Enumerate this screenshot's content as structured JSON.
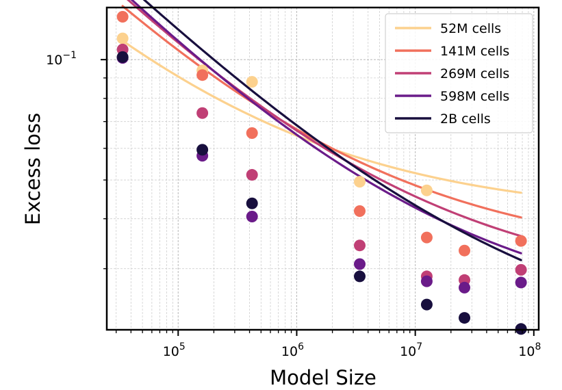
{
  "chart_data": {
    "type": "scatter",
    "title": "",
    "xlabel": "Model Size",
    "ylabel": "Excess loss",
    "xscale": "log",
    "yscale": "log",
    "xlim": [
      25000,
      110000000
    ],
    "ylim": [
      0.0211,
      0.135
    ],
    "grid": true,
    "legend_position": "top-right",
    "x_major_ticks": [
      {
        "value": 100000,
        "base": "10",
        "exp": "5"
      },
      {
        "value": 1000000,
        "base": "10",
        "exp": "6"
      },
      {
        "value": 10000000,
        "base": "10",
        "exp": "7"
      },
      {
        "value": 100000000,
        "base": "10",
        "exp": "8"
      }
    ],
    "y_major_ticks": [
      {
        "value": 0.1,
        "base": "10",
        "exp": "−1"
      }
    ],
    "x": [
      34000,
      160000,
      420000,
      3400000,
      12500000,
      26000000,
      78000000
    ],
    "series": [
      {
        "name": "52M cells",
        "color": "#fcd18e",
        "points": [
          0.113,
          0.094,
          0.088,
          0.0495,
          0.0471,
          null,
          null
        ],
        "fit": {
          "Linf": 0.0405,
          "A": 2.0,
          "alpha": 0.32
        }
      },
      {
        "name": "141M cells",
        "color": "#f1705c",
        "points": [
          0.128,
          0.0915,
          0.0655,
          0.0418,
          0.0359,
          0.0333,
          0.0352
        ],
        "fit": {
          "Linf": 0.0315,
          "A": 2.95,
          "alpha": 0.32
        }
      },
      {
        "name": "269M cells",
        "color": "#c03f75",
        "points": [
          0.106,
          0.0735,
          0.0515,
          0.0343,
          0.0287,
          0.0281,
          0.0298
        ],
        "fit": {
          "Linf": 0.0262,
          "A": 3.35,
          "alpha": 0.32
        }
      },
      {
        "name": "598M cells",
        "color": "#6a1b89",
        "points": [
          0.101,
          0.0575,
          0.0405,
          0.0308,
          0.0279,
          0.0269,
          0.0277
        ],
        "fit": {
          "Linf": 0.0222,
          "A": 3.55,
          "alpha": 0.32
        }
      },
      {
        "name": "2B cells",
        "color": "#180f3e",
        "points": [
          0.1015,
          0.0595,
          0.0437,
          0.0287,
          0.0244,
          0.0226,
          0.0212
        ],
        "fit": {
          "Linf": 0.0178,
          "A": 3.2,
          "alpha": 0.3
        }
      }
    ]
  }
}
